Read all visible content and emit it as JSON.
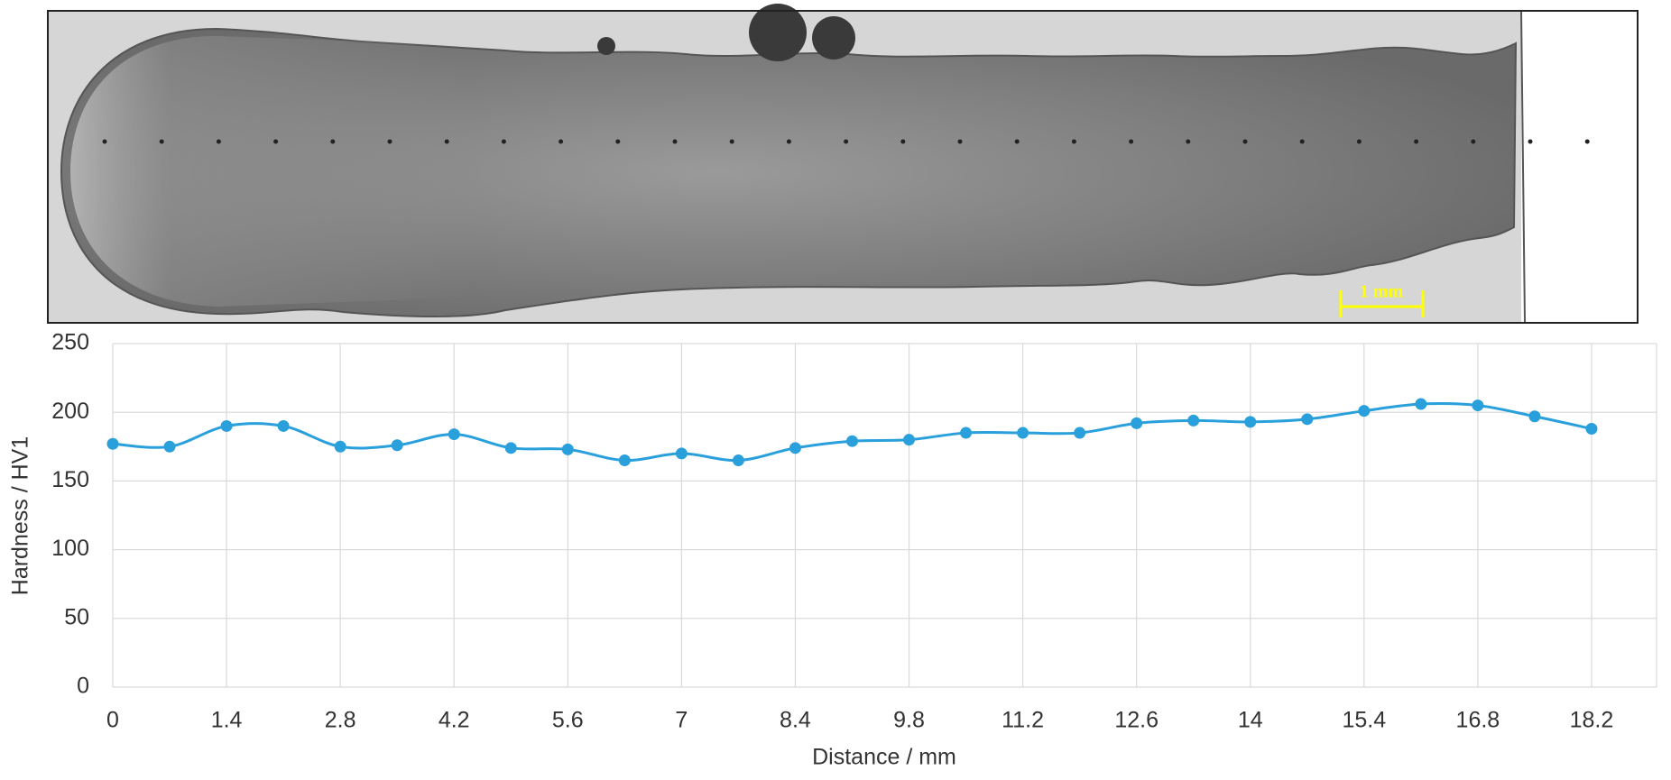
{
  "chart_data": {
    "type": "line",
    "annotations": [
      "1 mm"
    ],
    "x": [
      0,
      0.7,
      1.4,
      2.1,
      2.8,
      3.5,
      4.2,
      4.9,
      5.6,
      6.3,
      7,
      7.7,
      8.4,
      9.1,
      9.8,
      10.5,
      11.2,
      11.9,
      12.6,
      13.3,
      14,
      14.7,
      15.4,
      16.1,
      16.8,
      17.5,
      18.2
    ],
    "series": [
      {
        "color": "#29a0dc",
        "values": [
          177,
          175,
          190,
          190,
          175,
          176,
          184,
          174,
          173,
          165,
          170,
          165,
          174,
          179,
          180,
          185,
          185,
          185,
          192,
          194,
          193,
          195,
          201,
          206,
          205,
          197,
          188
        ]
      }
    ],
    "xlabel": "Distance / mm",
    "ylabel": "Hardness / HV1",
    "xlim": [
      0,
      19
    ],
    "ylim": [
      0,
      250
    ],
    "xticks": [
      0,
      1.4,
      2.8,
      4.2,
      5.6,
      7,
      8.4,
      9.8,
      11.2,
      12.6,
      14,
      15.4,
      16.8,
      18.2
    ],
    "yticks": [
      0,
      50,
      100,
      150,
      200,
      250
    ],
    "grid": true,
    "smooth": true
  }
}
